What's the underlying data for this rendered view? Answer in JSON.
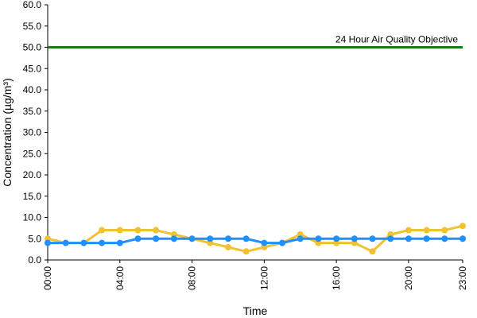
{
  "chart_data": {
    "type": "line",
    "xlabel": "Time",
    "ylabel": "Concentration (µg/m³)",
    "x": [
      "00:00",
      "01:00",
      "02:00",
      "03:00",
      "04:00",
      "05:00",
      "06:00",
      "07:00",
      "08:00",
      "09:00",
      "10:00",
      "11:00",
      "12:00",
      "13:00",
      "14:00",
      "15:00",
      "16:00",
      "17:00",
      "18:00",
      "19:00",
      "20:00",
      "21:00",
      "22:00",
      "23:00"
    ],
    "xticks": [
      "00:00",
      "04:00",
      "08:00",
      "12:00",
      "16:00",
      "20:00",
      "23:00"
    ],
    "ylim": [
      0,
      60
    ],
    "yticks": [
      "0.0",
      "5.0",
      "10.0",
      "15.0",
      "20.0",
      "25.0",
      "30.0",
      "35.0",
      "40.0",
      "45.0",
      "50.0",
      "55.0",
      "60.0"
    ],
    "grid": false,
    "series": [
      {
        "color": "#f2c12e",
        "values": [
          5,
          4,
          4,
          7,
          7,
          7,
          7,
          6,
          5,
          4,
          3,
          2,
          3,
          4,
          6,
          4,
          4,
          4,
          2,
          6,
          7,
          7,
          7,
          8
        ]
      },
      {
        "color": "#1e90ff",
        "values": [
          4,
          4,
          4,
          4,
          4,
          5,
          5,
          5,
          5,
          5,
          5,
          5,
          4,
          4,
          5,
          5,
          5,
          5,
          5,
          5,
          5,
          5,
          5,
          5
        ]
      }
    ],
    "objective": {
      "value": 50,
      "label": "24 Hour Air Quality Objective",
      "color": "#1a7a1a"
    }
  }
}
